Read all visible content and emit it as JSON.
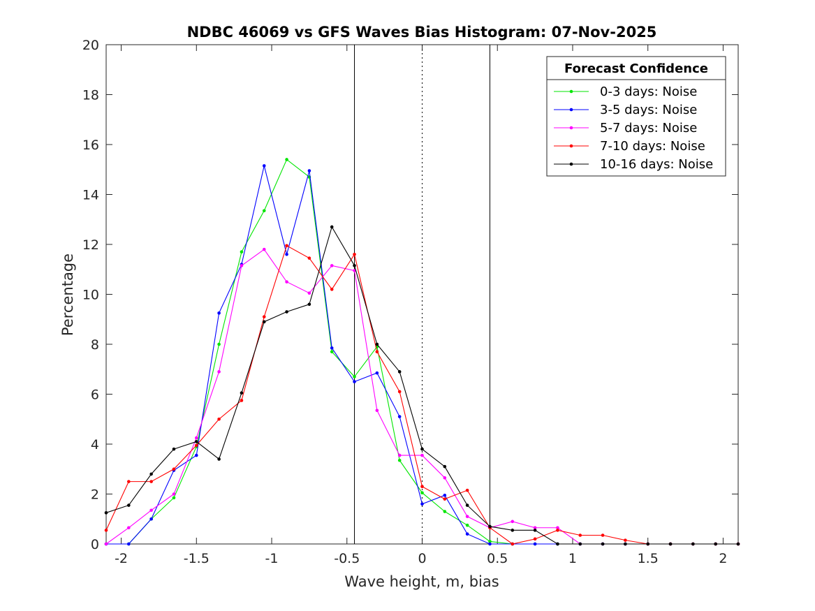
{
  "chart_data": {
    "type": "line",
    "title": "NDBC 46069 vs GFS Waves Bias Histogram: 07-Nov-2025",
    "xlabel": "Wave height, m, bias",
    "ylabel": "Percentage",
    "xlim": [
      -2.1,
      2.1
    ],
    "ylim": [
      0,
      20
    ],
    "xticks": [
      -2,
      -1.5,
      -1,
      -0.5,
      0,
      0.5,
      1,
      1.5,
      2
    ],
    "xtick_labels": [
      "-2",
      "-1.5",
      "-1",
      "-0.5",
      "0",
      "0.5",
      "1",
      "1.5",
      "2"
    ],
    "yticks": [
      0,
      2,
      4,
      6,
      8,
      10,
      12,
      14,
      16,
      18,
      20
    ],
    "ytick_labels": [
      "0",
      "2",
      "4",
      "6",
      "8",
      "10",
      "12",
      "14",
      "16",
      "18",
      "20"
    ],
    "grid": false,
    "reference_lines": [
      {
        "x": -0.45,
        "style": "solid"
      },
      {
        "x": 0,
        "style": "dotted"
      },
      {
        "x": 0.45,
        "style": "solid"
      }
    ],
    "legend": {
      "title": "Forecast Confidence",
      "position": "top-right"
    },
    "x": [
      -2.1,
      -1.95,
      -1.8,
      -1.65,
      -1.5,
      -1.35,
      -1.2,
      -1.05,
      -0.9,
      -0.75,
      -0.6,
      -0.45,
      -0.3,
      -0.15,
      0,
      0.15,
      0.3,
      0.45,
      0.6,
      0.75,
      0.9,
      1.05,
      1.2,
      1.35,
      1.5,
      1.65,
      1.8,
      1.95,
      2.1
    ],
    "series": [
      {
        "name": "0-3 days: Noise",
        "color": "#00e600",
        "values": [
          0,
          0,
          1.0,
          1.85,
          3.9,
          8.0,
          11.7,
          13.35,
          15.4,
          14.7,
          7.7,
          6.7,
          7.9,
          3.35,
          2.05,
          1.3,
          0.75,
          0.1,
          0,
          0,
          0,
          0,
          0,
          0,
          0,
          0,
          0,
          0,
          0
        ]
      },
      {
        "name": "3-5 days: Noise",
        "color": "#0000ff",
        "values": [
          0,
          0,
          1.0,
          2.95,
          3.55,
          9.25,
          11.2,
          15.15,
          11.6,
          14.95,
          7.85,
          6.5,
          6.85,
          5.1,
          1.6,
          1.95,
          0.4,
          0,
          0,
          0,
          0,
          0,
          0,
          0,
          0,
          0,
          0,
          0,
          0
        ]
      },
      {
        "name": "5-7 days: Noise",
        "color": "#ff00ff",
        "values": [
          0,
          0.65,
          1.35,
          2.0,
          4.25,
          6.9,
          11.15,
          11.8,
          10.5,
          10.05,
          11.15,
          10.95,
          5.35,
          3.55,
          3.55,
          2.65,
          1.1,
          0.65,
          0.9,
          0.65,
          0.65,
          0,
          0,
          0,
          0,
          0,
          0,
          0,
          0
        ]
      },
      {
        "name": "7-10 days: Noise",
        "color": "#ff0000",
        "values": [
          0.55,
          2.5,
          2.5,
          3.0,
          3.95,
          5.0,
          5.75,
          9.1,
          11.95,
          11.45,
          10.2,
          11.6,
          7.7,
          6.1,
          2.3,
          1.8,
          2.15,
          0.65,
          0,
          0.2,
          0.55,
          0.35,
          0.35,
          0.15,
          0,
          0,
          0,
          0,
          0
        ]
      },
      {
        "name": "10-16 days: Noise",
        "color": "#000000",
        "values": [
          1.25,
          1.55,
          2.8,
          3.8,
          4.1,
          3.4,
          6.05,
          8.9,
          9.3,
          9.6,
          12.7,
          11.15,
          8.0,
          6.9,
          3.8,
          3.1,
          1.55,
          0.7,
          0.55,
          0.55,
          0,
          0,
          0,
          0,
          0,
          0,
          0,
          0,
          0
        ]
      }
    ]
  }
}
